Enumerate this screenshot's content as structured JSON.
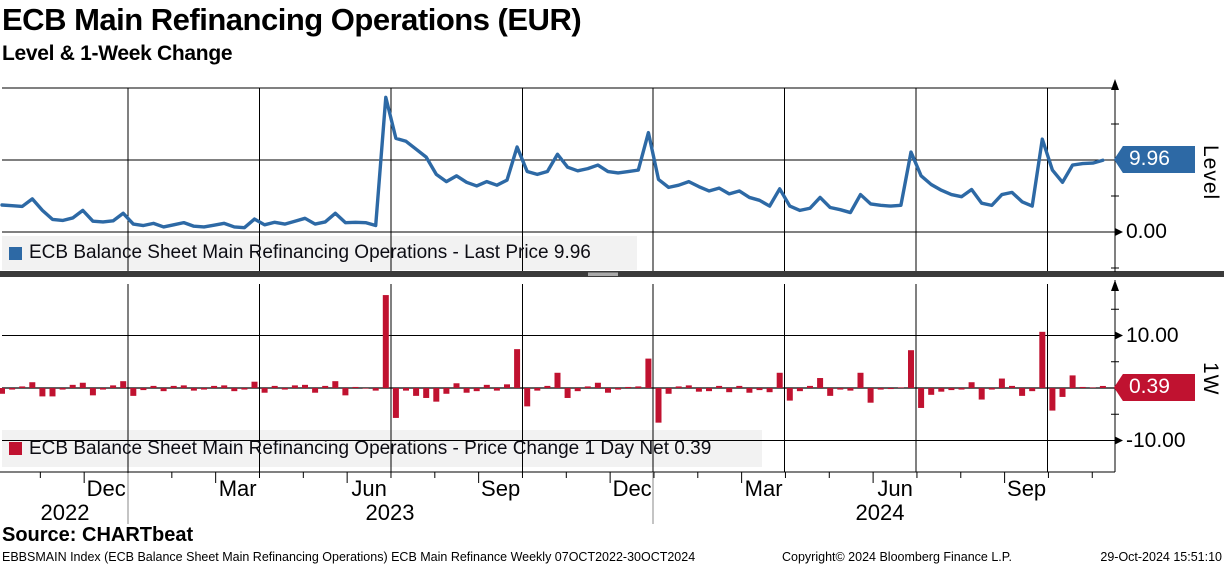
{
  "title": "ECB Main Refinancing Operations (EUR)",
  "subtitle": "Level & 1-Week Change",
  "level_panel": {
    "legend_label": "ECB Balance Sheet Main Refinancing Operations - Last Price 9.96",
    "last_value_tag": "9.96",
    "zero_tick_label": "0.00",
    "axis_title": "Level"
  },
  "change_panel": {
    "legend_label": "ECB Balance Sheet Main Refinancing Operations - Price Change 1 Day Net 0.39",
    "last_value_tag": "0.39",
    "upper_tick_label": "10.00",
    "lower_tick_label": "-10.00",
    "axis_title": "1W"
  },
  "x_axis": {
    "month_labels": [
      "Dec",
      "Mar",
      "Jun",
      "Sep",
      "Dec",
      "Mar",
      "Jun",
      "Sep"
    ],
    "year_labels": [
      "2022",
      "2023",
      "2024"
    ]
  },
  "footer": {
    "source": "Source: CHARTbeat",
    "description": "EBBSMAIN Index (ECB Balance Sheet Main Refinancing Operations) ECB Main Refinance  Weekly 07OCT2022-30OCT2024",
    "copyright": "Copyright© 2024 Bloomberg Finance L.P.",
    "timestamp": "29-Oct-2024 15:51:10"
  },
  "colors": {
    "line_blue": "#2d69a5",
    "bar_red": "#c01230",
    "grid_black": "#000000",
    "legend_bg": "#f2f2f2",
    "separator": "#3b3b3b",
    "year_separator": "#888888"
  },
  "chart_data": {
    "type": "line+bar",
    "frequency": "weekly",
    "date_range": "07OCT2022-30OCT2024",
    "title": "ECB Main Refinancing Operations (EUR) — Level & 1-Week Change",
    "level_axis": {
      "labeled_ticks": [
        0,
        10
      ],
      "minor_ticks": [
        -5,
        5,
        15
      ],
      "gridlines": [
        0,
        10,
        20
      ],
      "last": 9.96
    },
    "change_axis": {
      "labeled_ticks": [
        -10,
        10
      ],
      "minor_ticks": [
        -5,
        5,
        15
      ],
      "gridlines": [
        10,
        -10
      ],
      "zero_line": 0,
      "last": 0.39
    },
    "x_gridlines": "calendar quarters (Jan/Apr/Jul/Oct 2023-2024)",
    "series": [
      {
        "name": "ECB Balance Sheet Main Refinancing Operations - Last Price",
        "type": "line",
        "values": [
          3.75,
          3.65,
          3.55,
          4.6,
          3.0,
          1.75,
          1.6,
          1.95,
          3.0,
          1.5,
          1.4,
          1.55,
          2.6,
          1.1,
          0.9,
          1.2,
          0.7,
          1.0,
          1.3,
          0.8,
          0.7,
          0.95,
          1.2,
          0.7,
          0.6,
          1.8,
          1.0,
          1.35,
          1.1,
          1.5,
          1.9,
          1.1,
          1.4,
          2.6,
          1.3,
          1.35,
          1.3,
          0.9,
          18.7,
          13.0,
          12.6,
          11.5,
          10.4,
          8.0,
          7.0,
          7.8,
          6.9,
          6.4,
          7.0,
          6.5,
          7.2,
          11.8,
          8.4,
          8.0,
          8.4,
          10.8,
          9.0,
          8.5,
          8.8,
          9.3,
          8.4,
          8.2,
          8.4,
          8.6,
          13.8,
          7.3,
          6.2,
          6.5,
          7.0,
          6.3,
          5.7,
          6.1,
          5.3,
          5.7,
          4.8,
          4.4,
          3.6,
          6.0,
          3.6,
          3.0,
          3.3,
          4.8,
          3.4,
          3.1,
          2.7,
          5.2,
          3.9,
          3.7,
          3.6,
          3.7,
          11.1,
          7.8,
          6.6,
          5.8,
          5.2,
          4.9,
          5.9,
          4.0,
          3.7,
          5.2,
          5.5,
          4.2,
          3.6,
          12.9,
          8.6,
          6.9,
          9.3,
          9.5,
          9.57,
          9.96
        ]
      },
      {
        "name": "ECB Balance Sheet Main Refinancing Operations - Price Change 1 Day Net",
        "type": "bar",
        "values": [
          -1.1,
          -0.3,
          0.3,
          1.1,
          -1.6,
          -1.6,
          -0.3,
          0.6,
          1.0,
          -1.4,
          -0.3,
          0.5,
          1.3,
          -1.5,
          -0.4,
          0.4,
          -0.6,
          0.4,
          0.5,
          -0.5,
          -0.3,
          0.4,
          0.5,
          -0.6,
          -0.3,
          1.2,
          -0.9,
          0.4,
          -0.3,
          0.5,
          0.6,
          -0.9,
          0.4,
          1.3,
          -1.4,
          0.2,
          -0.1,
          -0.5,
          17.7,
          -5.7,
          -0.5,
          -1.5,
          -1.9,
          -2.6,
          -1.1,
          0.9,
          -0.9,
          -0.6,
          0.6,
          -0.5,
          0.7,
          7.4,
          -3.5,
          -0.5,
          0.4,
          2.9,
          -1.9,
          -0.6,
          0.3,
          1.0,
          -0.9,
          -0.3,
          0.2,
          0.3,
          5.6,
          -6.6,
          -1.1,
          0.3,
          0.5,
          -0.7,
          -0.6,
          0.4,
          -0.8,
          0.4,
          -0.9,
          -0.4,
          -0.8,
          2.9,
          -2.4,
          -0.6,
          0.4,
          1.9,
          -1.5,
          -0.3,
          -0.5,
          2.9,
          -2.8,
          -0.3,
          -0.2,
          0.1,
          7.2,
          -3.8,
          -1.3,
          -0.7,
          -0.4,
          -0.3,
          1.1,
          -2.2,
          -0.3,
          1.8,
          0.4,
          -1.5,
          -0.6,
          10.7,
          -4.3,
          -1.7,
          2.4,
          0.2,
          0.1,
          0.39
        ]
      }
    ]
  }
}
